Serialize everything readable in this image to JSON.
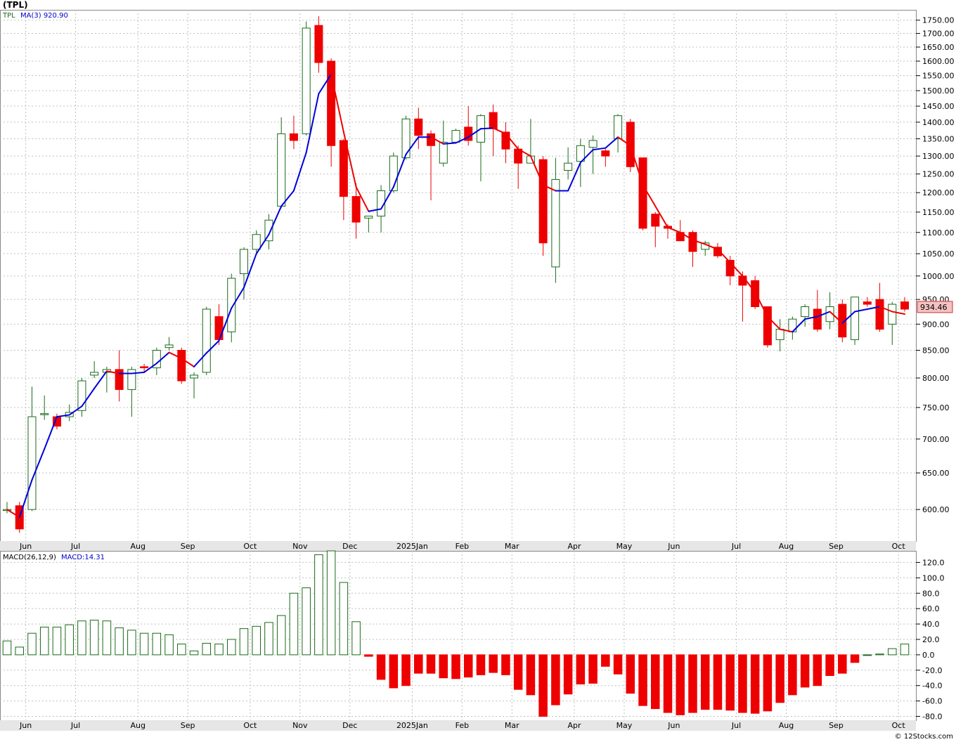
{
  "title": "(TPL)",
  "credit": "© 12Stocks.com",
  "colors": {
    "up": "#1a6b1a",
    "down": "#ee0000",
    "ma_up": "#0000dd",
    "ma_down": "#ee0000",
    "grid": "#c0c0c0",
    "last_price_bg": "#f4c2c2"
  },
  "chart_data": [
    {
      "type": "candlestick",
      "symbol": "TPL",
      "ma_label": "MA(3)",
      "ma_value": "920.90",
      "last_price": "934.46",
      "scale": "log",
      "ylim": [
        560,
        1790
      ],
      "yticks": [
        600,
        650,
        700,
        750,
        800,
        850,
        900,
        950,
        1000,
        1050,
        1100,
        1150,
        1200,
        1250,
        1300,
        1350,
        1400,
        1450,
        1500,
        1550,
        1600,
        1650,
        1700,
        1750
      ],
      "ytick_labels": [
        "600.00",
        "650.00",
        "700.00",
        "750.00",
        "800.00",
        "850.00",
        "900.00",
        "950.00",
        "1000.00",
        "1050.00",
        "1100.00",
        "1150.00",
        "1200.00",
        "1250.00",
        "1300.00",
        "1350.00",
        "1400.00",
        "1450.00",
        "1500.00",
        "1550.00",
        "1600.00",
        "1650.00",
        "1700.00",
        "1750.00"
      ],
      "xticks": [
        {
          "label": "Jun",
          "i": 1
        },
        {
          "label": "Jul",
          "i": 5
        },
        {
          "label": "Aug",
          "i": 10
        },
        {
          "label": "Sep",
          "i": 14
        },
        {
          "label": "Oct",
          "i": 19
        },
        {
          "label": "Nov",
          "i": 23
        },
        {
          "label": "Dec",
          "i": 27
        },
        {
          "label": "2025Jan",
          "i": 32
        },
        {
          "label": "Feb",
          "i": 36
        },
        {
          "label": "Mar",
          "i": 40
        },
        {
          "label": "Apr",
          "i": 45
        },
        {
          "label": "May",
          "i": 49
        },
        {
          "label": "Jun",
          "i": 53
        },
        {
          "label": "Jul",
          "i": 58
        },
        {
          "label": "Aug",
          "i": 62
        },
        {
          "label": "Sep",
          "i": 66
        },
        {
          "label": "Oct",
          "i": 71
        }
      ],
      "ohlc": [
        [
          600,
          610,
          595,
          600
        ],
        [
          605,
          610,
          570,
          575
        ],
        [
          600,
          785,
          598,
          735
        ],
        [
          740,
          770,
          730,
          740
        ],
        [
          735,
          740,
          715,
          720
        ],
        [
          735,
          755,
          728,
          742
        ],
        [
          745,
          800,
          735,
          795
        ],
        [
          805,
          830,
          800,
          810
        ],
        [
          810,
          820,
          775,
          815
        ],
        [
          815,
          850,
          760,
          780
        ],
        [
          780,
          820,
          735,
          815
        ],
        [
          820,
          825,
          810,
          818
        ],
        [
          818,
          855,
          805,
          850
        ],
        [
          855,
          875,
          850,
          860
        ],
        [
          850,
          855,
          790,
          795
        ],
        [
          800,
          810,
          765,
          805
        ],
        [
          810,
          935,
          805,
          930
        ],
        [
          915,
          940,
          860,
          870
        ],
        [
          885,
          1005,
          865,
          995
        ],
        [
          1005,
          1065,
          950,
          1060
        ],
        [
          1060,
          1105,
          1050,
          1095
        ],
        [
          1080,
          1145,
          1060,
          1130
        ],
        [
          1165,
          1415,
          1160,
          1365
        ],
        [
          1365,
          1420,
          1320,
          1345
        ],
        [
          1365,
          1745,
          1360,
          1720
        ],
        [
          1730,
          1765,
          1560,
          1595
        ],
        [
          1600,
          1610,
          1270,
          1330
        ],
        [
          1345,
          1350,
          1130,
          1190
        ],
        [
          1190,
          1225,
          1085,
          1125
        ],
        [
          1135,
          1140,
          1100,
          1140
        ],
        [
          1140,
          1220,
          1100,
          1205
        ],
        [
          1205,
          1310,
          1200,
          1300
        ],
        [
          1295,
          1420,
          1290,
          1410
        ],
        [
          1410,
          1445,
          1320,
          1360
        ],
        [
          1365,
          1375,
          1180,
          1330
        ],
        [
          1280,
          1405,
          1270,
          1340
        ],
        [
          1340,
          1380,
          1340,
          1375
        ],
        [
          1385,
          1450,
          1330,
          1345
        ],
        [
          1340,
          1425,
          1230,
          1420
        ],
        [
          1430,
          1455,
          1300,
          1380
        ],
        [
          1370,
          1400,
          1280,
          1320
        ],
        [
          1320,
          1330,
          1210,
          1280
        ],
        [
          1280,
          1410,
          1285,
          1300
        ],
        [
          1290,
          1300,
          1045,
          1075
        ],
        [
          1020,
          1295,
          985,
          1235
        ],
        [
          1260,
          1325,
          1235,
          1280
        ],
        [
          1285,
          1350,
          1215,
          1330
        ],
        [
          1325,
          1360,
          1250,
          1345
        ],
        [
          1315,
          1320,
          1270,
          1300
        ],
        [
          1350,
          1425,
          1310,
          1420
        ],
        [
          1400,
          1410,
          1255,
          1270
        ],
        [
          1295,
          1295,
          1105,
          1110
        ],
        [
          1145,
          1150,
          1065,
          1115
        ],
        [
          1115,
          1120,
          1085,
          1110
        ],
        [
          1100,
          1130,
          1080,
          1080
        ],
        [
          1100,
          1105,
          1020,
          1055
        ],
        [
          1060,
          1080,
          1045,
          1075
        ],
        [
          1065,
          1075,
          1040,
          1045
        ],
        [
          1035,
          1045,
          980,
          1000
        ],
        [
          1000,
          1010,
          905,
          980
        ],
        [
          990,
          1000,
          930,
          935
        ],
        [
          935,
          935,
          855,
          860
        ],
        [
          870,
          910,
          848,
          890
        ],
        [
          885,
          915,
          870,
          910
        ],
        [
          915,
          940,
          895,
          935
        ],
        [
          930,
          970,
          885,
          890
        ],
        [
          905,
          965,
          890,
          935
        ],
        [
          940,
          950,
          865,
          875
        ],
        [
          870,
          950,
          860,
          955
        ],
        [
          945,
          955,
          935,
          940
        ],
        [
          950,
          985,
          885,
          890
        ],
        [
          900,
          945,
          860,
          940
        ],
        [
          945,
          955,
          925,
          930
        ]
      ],
      "ma": [
        600,
        590,
        640,
        685,
        735,
        738,
        752,
        782,
        812,
        808,
        808,
        810,
        826,
        846,
        835,
        820,
        845,
        868,
        932,
        975,
        1050,
        1095,
        1165,
        1205,
        1310,
        1490,
        1555,
        1370,
        1215,
        1152,
        1158,
        1215,
        1305,
        1355,
        1355,
        1335,
        1338,
        1355,
        1380,
        1382,
        1365,
        1320,
        1300,
        1220,
        1205,
        1205,
        1282,
        1318,
        1323,
        1355,
        1330,
        1220,
        1165,
        1112,
        1100,
        1082,
        1072,
        1060,
        1030,
        1000,
        965,
        915,
        890,
        885,
        910,
        915,
        925,
        902,
        925,
        930,
        935,
        925,
        920
      ]
    },
    {
      "type": "bar",
      "label": "MACD(26,12,9)",
      "value_label": "MACD:14.31",
      "ylim": [
        -85,
        135
      ],
      "yticks": [
        -80,
        -60,
        -40,
        -20,
        0,
        20,
        40,
        60,
        80,
        100,
        120
      ],
      "ytick_labels": [
        "-80.0",
        "-60.0",
        "-40.0",
        "-20.0",
        "0.0",
        "20.0",
        "40.0",
        "60.0",
        "80.0",
        "100.0",
        "120.0"
      ],
      "xticks": [
        {
          "label": "Jun",
          "i": 1
        },
        {
          "label": "Jul",
          "i": 5
        },
        {
          "label": "Aug",
          "i": 10
        },
        {
          "label": "Sep",
          "i": 14
        },
        {
          "label": "Oct",
          "i": 19
        },
        {
          "label": "Nov",
          "i": 23
        },
        {
          "label": "Dec",
          "i": 27
        },
        {
          "label": "2025Jan",
          "i": 32
        },
        {
          "label": "Feb",
          "i": 36
        },
        {
          "label": "Mar",
          "i": 40
        },
        {
          "label": "Apr",
          "i": 45
        },
        {
          "label": "May",
          "i": 49
        },
        {
          "label": "Jun",
          "i": 53
        },
        {
          "label": "Jul",
          "i": 58
        },
        {
          "label": "Aug",
          "i": 62
        },
        {
          "label": "Sep",
          "i": 66
        },
        {
          "label": "Oct",
          "i": 71
        }
      ],
      "values": [
        18,
        10,
        28,
        36,
        36,
        39,
        44,
        45,
        44,
        35,
        32,
        28,
        28,
        26,
        14,
        5,
        15,
        14,
        20,
        34,
        37,
        42,
        51,
        80,
        87,
        130,
        135,
        94,
        43,
        -2,
        -32,
        -43,
        -40,
        -24,
        -24,
        -30,
        -31,
        -29,
        -26,
        -23,
        -26,
        -45,
        -52,
        -80,
        -65,
        -51,
        -38,
        -37,
        -15,
        -25,
        -50,
        -66,
        -70,
        -75,
        -78,
        -75,
        -71,
        -71,
        -72,
        -75,
        -76,
        -73,
        -62,
        -52,
        -42,
        -40,
        -27,
        -24,
        -10,
        0,
        1,
        8,
        14
      ]
    }
  ]
}
